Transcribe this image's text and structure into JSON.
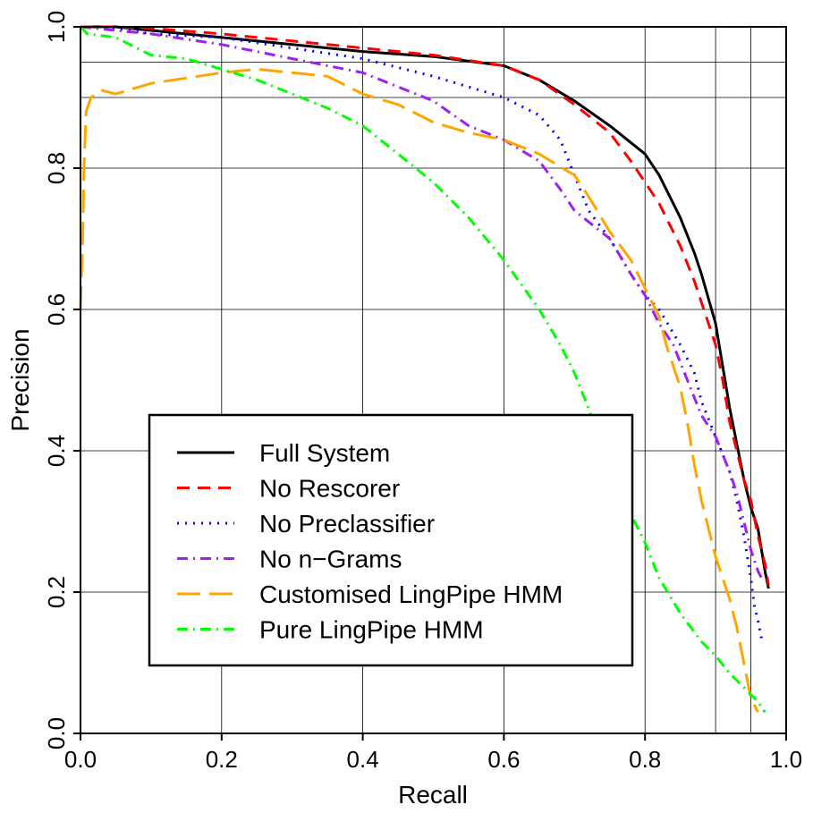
{
  "chart_data": {
    "type": "line",
    "title": "",
    "xlabel": "Recall",
    "ylabel": "Precision",
    "xlim": [
      0.0,
      1.0
    ],
    "ylim": [
      0.0,
      1.0
    ],
    "xticks": [
      0.0,
      0.2,
      0.4,
      0.6,
      0.8,
      1.0
    ],
    "yticks": [
      0.0,
      0.2,
      0.4,
      0.6,
      0.8,
      1.0
    ],
    "xtick_labels": [
      "0.0",
      "0.2",
      "0.4",
      "0.6",
      "0.8",
      "1.0"
    ],
    "ytick_labels": [
      "0.0",
      "0.2",
      "0.4",
      "0.6",
      "0.8",
      "1.0"
    ],
    "grid": true,
    "extra_grid_x": [
      0.9,
      0.95
    ],
    "extra_grid_y": [
      0.9,
      0.95
    ],
    "legend_position": "bottom-left",
    "series": [
      {
        "name": "Full System",
        "color": "#000000",
        "dash": "solid",
        "points": [
          [
            0.0,
            1.0
          ],
          [
            0.05,
            1.0
          ],
          [
            0.1,
            0.995
          ],
          [
            0.2,
            0.985
          ],
          [
            0.3,
            0.975
          ],
          [
            0.4,
            0.965
          ],
          [
            0.5,
            0.958
          ],
          [
            0.6,
            0.945
          ],
          [
            0.65,
            0.925
          ],
          [
            0.7,
            0.895
          ],
          [
            0.75,
            0.86
          ],
          [
            0.8,
            0.82
          ],
          [
            0.82,
            0.79
          ],
          [
            0.85,
            0.73
          ],
          [
            0.87,
            0.68
          ],
          [
            0.88,
            0.65
          ],
          [
            0.9,
            0.58
          ],
          [
            0.91,
            0.52
          ],
          [
            0.92,
            0.46
          ],
          [
            0.93,
            0.41
          ],
          [
            0.94,
            0.36
          ],
          [
            0.95,
            0.32
          ],
          [
            0.96,
            0.29
          ],
          [
            0.965,
            0.26
          ],
          [
            0.97,
            0.23
          ],
          [
            0.975,
            0.205
          ]
        ]
      },
      {
        "name": "No Rescorer",
        "color": "#ff0000",
        "dash": "dashed",
        "points": [
          [
            0.0,
            1.0
          ],
          [
            0.05,
            1.0
          ],
          [
            0.1,
            0.998
          ],
          [
            0.2,
            0.99
          ],
          [
            0.3,
            0.98
          ],
          [
            0.4,
            0.97
          ],
          [
            0.5,
            0.96
          ],
          [
            0.6,
            0.945
          ],
          [
            0.65,
            0.925
          ],
          [
            0.7,
            0.89
          ],
          [
            0.75,
            0.85
          ],
          [
            0.78,
            0.81
          ],
          [
            0.8,
            0.78
          ],
          [
            0.82,
            0.75
          ],
          [
            0.85,
            0.69
          ],
          [
            0.87,
            0.64
          ],
          [
            0.88,
            0.61
          ],
          [
            0.89,
            0.58
          ],
          [
            0.9,
            0.55
          ],
          [
            0.91,
            0.5
          ],
          [
            0.92,
            0.44
          ],
          [
            0.93,
            0.4
          ],
          [
            0.94,
            0.36
          ],
          [
            0.95,
            0.33
          ],
          [
            0.96,
            0.28
          ],
          [
            0.97,
            0.24
          ],
          [
            0.975,
            0.21
          ]
        ]
      },
      {
        "name": "No Preclassifier",
        "color": "#0000ff",
        "dash": "dotted",
        "points": [
          [
            0.0,
            1.0
          ],
          [
            0.05,
            0.998
          ],
          [
            0.1,
            0.99
          ],
          [
            0.2,
            0.985
          ],
          [
            0.3,
            0.97
          ],
          [
            0.4,
            0.955
          ],
          [
            0.5,
            0.93
          ],
          [
            0.6,
            0.9
          ],
          [
            0.65,
            0.875
          ],
          [
            0.68,
            0.84
          ],
          [
            0.7,
            0.79
          ],
          [
            0.72,
            0.74
          ],
          [
            0.75,
            0.7
          ],
          [
            0.78,
            0.65
          ],
          [
            0.8,
            0.62
          ],
          [
            0.82,
            0.6
          ],
          [
            0.85,
            0.55
          ],
          [
            0.87,
            0.51
          ],
          [
            0.88,
            0.47
          ],
          [
            0.9,
            0.42
          ],
          [
            0.92,
            0.37
          ],
          [
            0.93,
            0.33
          ],
          [
            0.94,
            0.28
          ],
          [
            0.95,
            0.22
          ],
          [
            0.955,
            0.18
          ],
          [
            0.96,
            0.16
          ],
          [
            0.965,
            0.135
          ]
        ]
      },
      {
        "name": "No n−Grams",
        "color": "#a020f0",
        "dash": "dashdot",
        "points": [
          [
            0.0,
            1.0
          ],
          [
            0.05,
            0.995
          ],
          [
            0.1,
            0.99
          ],
          [
            0.2,
            0.975
          ],
          [
            0.3,
            0.955
          ],
          [
            0.4,
            0.935
          ],
          [
            0.5,
            0.895
          ],
          [
            0.55,
            0.86
          ],
          [
            0.6,
            0.84
          ],
          [
            0.65,
            0.81
          ],
          [
            0.68,
            0.77
          ],
          [
            0.7,
            0.74
          ],
          [
            0.75,
            0.7
          ],
          [
            0.78,
            0.65
          ],
          [
            0.8,
            0.62
          ],
          [
            0.82,
            0.58
          ],
          [
            0.84,
            0.55
          ],
          [
            0.86,
            0.5
          ],
          [
            0.88,
            0.45
          ],
          [
            0.9,
            0.42
          ],
          [
            0.92,
            0.37
          ],
          [
            0.93,
            0.34
          ],
          [
            0.94,
            0.3
          ],
          [
            0.95,
            0.26
          ],
          [
            0.96,
            0.23
          ],
          [
            0.965,
            0.22
          ]
        ]
      },
      {
        "name": "Customised LingPipe HMM",
        "color": "#ffa500",
        "dash": "longdash",
        "points": [
          [
            0.0,
            0.6
          ],
          [
            0.003,
            0.7
          ],
          [
            0.005,
            0.8
          ],
          [
            0.008,
            0.88
          ],
          [
            0.015,
            0.9
          ],
          [
            0.03,
            0.91
          ],
          [
            0.05,
            0.905
          ],
          [
            0.1,
            0.92
          ],
          [
            0.2,
            0.935
          ],
          [
            0.25,
            0.94
          ],
          [
            0.3,
            0.935
          ],
          [
            0.35,
            0.93
          ],
          [
            0.4,
            0.905
          ],
          [
            0.45,
            0.89
          ],
          [
            0.5,
            0.865
          ],
          [
            0.55,
            0.85
          ],
          [
            0.6,
            0.84
          ],
          [
            0.65,
            0.82
          ],
          [
            0.7,
            0.79
          ],
          [
            0.72,
            0.76
          ],
          [
            0.75,
            0.71
          ],
          [
            0.78,
            0.67
          ],
          [
            0.8,
            0.63
          ],
          [
            0.82,
            0.59
          ],
          [
            0.83,
            0.55
          ],
          [
            0.85,
            0.49
          ],
          [
            0.86,
            0.44
          ],
          [
            0.87,
            0.38
          ],
          [
            0.88,
            0.33
          ],
          [
            0.89,
            0.29
          ],
          [
            0.9,
            0.25
          ],
          [
            0.92,
            0.19
          ],
          [
            0.93,
            0.15
          ],
          [
            0.94,
            0.1
          ],
          [
            0.95,
            0.05
          ],
          [
            0.96,
            0.03
          ]
        ]
      },
      {
        "name": "Pure LingPipe HMM",
        "color": "#00ff00",
        "dash": "dashdot",
        "points": [
          [
            0.0,
            1.0
          ],
          [
            0.01,
            0.99
          ],
          [
            0.05,
            0.985
          ],
          [
            0.1,
            0.96
          ],
          [
            0.15,
            0.955
          ],
          [
            0.2,
            0.94
          ],
          [
            0.25,
            0.925
          ],
          [
            0.3,
            0.905
          ],
          [
            0.35,
            0.885
          ],
          [
            0.4,
            0.86
          ],
          [
            0.45,
            0.82
          ],
          [
            0.5,
            0.78
          ],
          [
            0.55,
            0.73
          ],
          [
            0.6,
            0.67
          ],
          [
            0.65,
            0.6
          ],
          [
            0.68,
            0.55
          ],
          [
            0.7,
            0.51
          ],
          [
            0.72,
            0.46
          ],
          [
            0.73,
            0.43
          ],
          [
            0.74,
            0.39
          ],
          [
            0.76,
            0.36
          ],
          [
            0.78,
            0.31
          ],
          [
            0.8,
            0.27
          ],
          [
            0.82,
            0.22
          ],
          [
            0.85,
            0.17
          ],
          [
            0.88,
            0.13
          ],
          [
            0.9,
            0.11
          ],
          [
            0.92,
            0.085
          ],
          [
            0.94,
            0.065
          ],
          [
            0.96,
            0.045
          ],
          [
            0.97,
            0.03
          ]
        ]
      }
    ]
  }
}
